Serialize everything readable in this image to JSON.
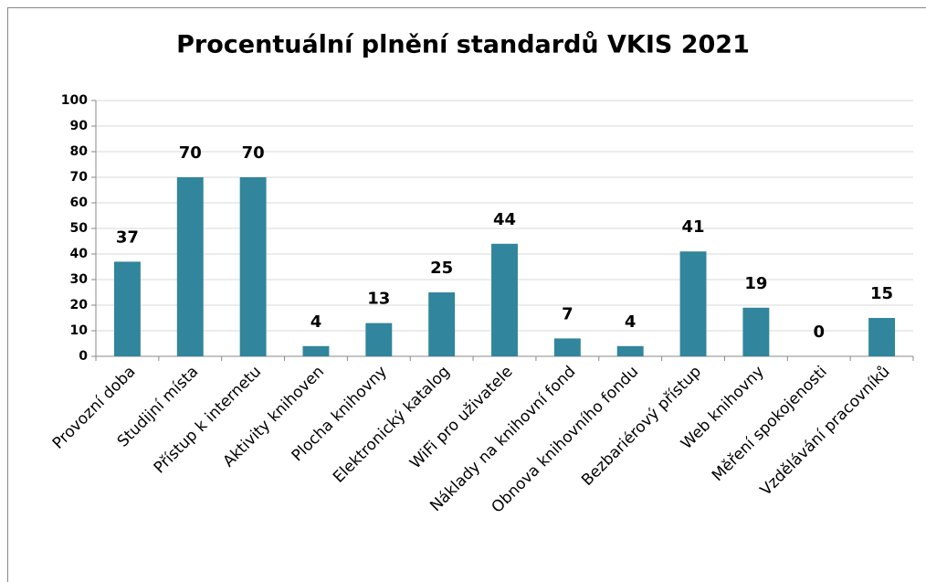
{
  "chart_data": {
    "type": "bar",
    "title": "Procentuální plnění standardů VKIS 2021",
    "categories": [
      "Provozní doba",
      "Studijní místa",
      "Přístup k internetu",
      "Aktivity knihoven",
      "Plocha knihovny",
      "Elektronický katalog",
      "WiFi pro uživatele",
      "Náklady na knihovní fond",
      "Obnova knihovního fondu",
      "Bezbariérový přístup",
      "Web knihovny",
      "Měření spokojenosti",
      "Vzdělávání pracovníků"
    ],
    "values": [
      37,
      70,
      70,
      4,
      13,
      25,
      44,
      7,
      4,
      41,
      19,
      0,
      15
    ],
    "color": "#31859c",
    "ylim": [
      0,
      100
    ],
    "yticks": [
      0,
      10,
      20,
      30,
      40,
      50,
      60,
      70,
      80,
      90,
      100
    ],
    "grid": true
  }
}
